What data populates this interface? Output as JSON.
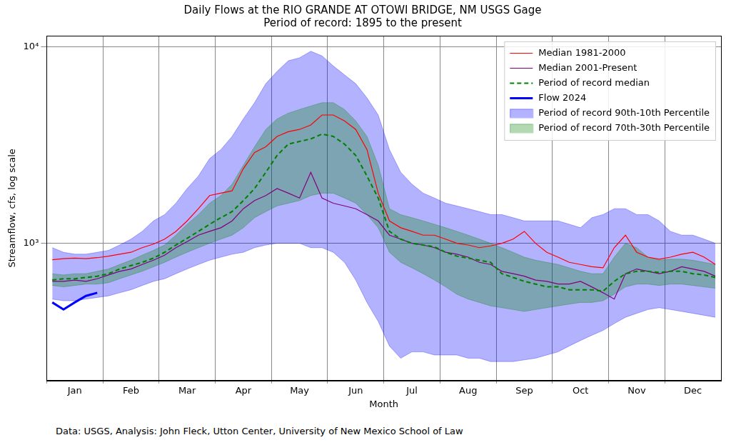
{
  "chart_data": {
    "type": "line",
    "title": "Daily Flows at the RIO GRANDE AT OTOWI BRIDGE, NM USGS Gage",
    "subtitle": "Period of record: 1895 to the present",
    "caption": "Data: USGS, Analysis: John Fleck, Utton Center, University of New Mexico School of Law",
    "x_label": "Month",
    "y_label": "Streamflow, cfs, log scale",
    "categories": [
      null,
      null,
      "Jan",
      null,
      null,
      null,
      null,
      "Feb",
      null,
      null,
      null,
      null,
      "Mar",
      null,
      null,
      null,
      null,
      "Apr",
      null,
      null,
      null,
      null,
      "May",
      null,
      null,
      null,
      null,
      "Jun",
      null,
      null,
      null,
      null,
      "Jul",
      null,
      null,
      null,
      null,
      "Aug",
      null,
      null,
      null,
      null,
      "Sep",
      null,
      null,
      null,
      null,
      "Oct",
      null,
      null,
      null,
      null,
      "Nov",
      null,
      null,
      null,
      null,
      "Dec",
      null,
      null
    ],
    "series": [
      {
        "name": "Median 1981-2000",
        "color": "#ff0000",
        "line_style": "solid",
        "values": [
          825,
          835,
          840,
          835,
          845,
          860,
          880,
          900,
          950,
          990,
          1050,
          1150,
          1300,
          1500,
          1750,
          1800,
          1850,
          2400,
          2900,
          3100,
          3500,
          3700,
          3800,
          4000,
          4500,
          4500,
          4200,
          3800,
          3000,
          1800,
          1300,
          1200,
          1150,
          1100,
          1100,
          1050,
          1000,
          980,
          950,
          970,
          1000,
          1050,
          1150,
          1000,
          900,
          850,
          800,
          780,
          760,
          750,
          950,
          1100,
          900,
          850,
          830,
          850,
          880,
          900,
          850,
          780
        ]
      },
      {
        "name": "Median 2001-Present",
        "color": "#800080",
        "line_style": "solid",
        "values": [
          640,
          640,
          650,
          640,
          660,
          690,
          720,
          740,
          780,
          820,
          870,
          950,
          1020,
          1100,
          1150,
          1200,
          1300,
          1500,
          1650,
          1750,
          1900,
          1800,
          1700,
          2300,
          1700,
          1600,
          1550,
          1500,
          1400,
          1300,
          1100,
          1050,
          1000,
          980,
          950,
          900,
          880,
          850,
          800,
          780,
          720,
          700,
          680,
          650,
          640,
          620,
          620,
          640,
          600,
          560,
          520,
          700,
          740,
          720,
          700,
          720,
          760,
          740,
          720,
          680
        ]
      },
      {
        "name": "Period of record median",
        "color": "#008000",
        "line_style": "dashed",
        "values": [
          650,
          660,
          660,
          670,
          680,
          700,
          740,
          770,
          800,
          840,
          900,
          980,
          1060,
          1150,
          1250,
          1350,
          1450,
          1650,
          1900,
          2300,
          2800,
          3200,
          3300,
          3400,
          3600,
          3500,
          3200,
          2800,
          2200,
          1700,
          1150,
          1050,
          1000,
          980,
          960,
          900,
          860,
          840,
          820,
          800,
          700,
          670,
          640,
          620,
          600,
          600,
          580,
          580,
          580,
          570,
          640,
          700,
          720,
          720,
          710,
          720,
          720,
          700,
          690,
          670
        ]
      },
      {
        "name": "Flow 2024",
        "color": "#0000ff",
        "line_style": "solid",
        "values": [
          500,
          460,
          500,
          540,
          560,
          null,
          null,
          null,
          null,
          null,
          null,
          null,
          null,
          null,
          null,
          null,
          null,
          null,
          null,
          null,
          null,
          null,
          null,
          null,
          null,
          null,
          null,
          null,
          null,
          null,
          null,
          null,
          null,
          null,
          null,
          null,
          null,
          null,
          null,
          null,
          null,
          null,
          null,
          null,
          null,
          null,
          null,
          null,
          null,
          null,
          null,
          null,
          null,
          null,
          null,
          null,
          null,
          null,
          null,
          null
        ]
      },
      {
        "name": "Period of record 90th-10th Percentile",
        "type": "band",
        "color": "#0000ff",
        "upper": [
          950,
          900,
          880,
          880,
          900,
          920,
          980,
          1050,
          1150,
          1300,
          1400,
          1600,
          1900,
          2200,
          2700,
          3000,
          3500,
          4300,
          5200,
          6500,
          7500,
          8500,
          8800,
          9500,
          9000,
          8000,
          7200,
          6500,
          5500,
          4500,
          3000,
          2300,
          2000,
          1800,
          1700,
          1600,
          1550,
          1500,
          1450,
          1400,
          1400,
          1350,
          1300,
          1300,
          1300,
          1300,
          1250,
          1200,
          1350,
          1400,
          1500,
          1500,
          1400,
          1400,
          1300,
          1150,
          1100,
          1100,
          1050,
          1000
        ],
        "lower": [
          520,
          510,
          510,
          520,
          530,
          540,
          560,
          580,
          610,
          640,
          660,
          700,
          740,
          780,
          820,
          850,
          880,
          900,
          950,
          980,
          1000,
          1000,
          1000,
          950,
          950,
          900,
          800,
          650,
          500,
          400,
          300,
          260,
          280,
          280,
          270,
          270,
          270,
          260,
          260,
          250,
          250,
          250,
          255,
          260,
          270,
          280,
          300,
          320,
          340,
          360,
          390,
          420,
          440,
          460,
          470,
          460,
          450,
          440,
          430,
          420
        ]
      },
      {
        "name": "Period of record 70th-30th Percentile",
        "type": "band",
        "color": "#008000",
        "upper": [
          700,
          690,
          700,
          700,
          720,
          740,
          780,
          820,
          870,
          920,
          980,
          1100,
          1250,
          1400,
          1600,
          1750,
          2000,
          2500,
          3100,
          3800,
          4300,
          4600,
          4800,
          5000,
          5200,
          5200,
          4800,
          4200,
          3500,
          2500,
          1500,
          1400,
          1350,
          1300,
          1250,
          1200,
          1150,
          1100,
          1050,
          1000,
          950,
          900,
          850,
          820,
          800,
          780,
          750,
          720,
          700,
          700,
          850,
          1000,
          950,
          850,
          820,
          830,
          830,
          820,
          800,
          780
        ],
        "lower": [
          610,
          600,
          610,
          620,
          620,
          630,
          660,
          690,
          720,
          760,
          800,
          850,
          900,
          950,
          1000,
          1050,
          1100,
          1200,
          1350,
          1450,
          1550,
          1600,
          1650,
          1750,
          1800,
          1800,
          1700,
          1600,
          1400,
          1200,
          900,
          800,
          750,
          700,
          650,
          600,
          550,
          520,
          500,
          480,
          470,
          460,
          450,
          460,
          470,
          480,
          490,
          500,
          500,
          510,
          550,
          600,
          620,
          620,
          610,
          620,
          620,
          610,
          600,
          590
        ]
      }
    ],
    "ylim": [
      200,
      11400
    ],
    "yticks": [
      {
        "value": 1000,
        "label": "10³"
      },
      {
        "value": 10000,
        "label": "10⁴"
      }
    ],
    "log": "y",
    "grid": true,
    "legend": "upper right"
  }
}
